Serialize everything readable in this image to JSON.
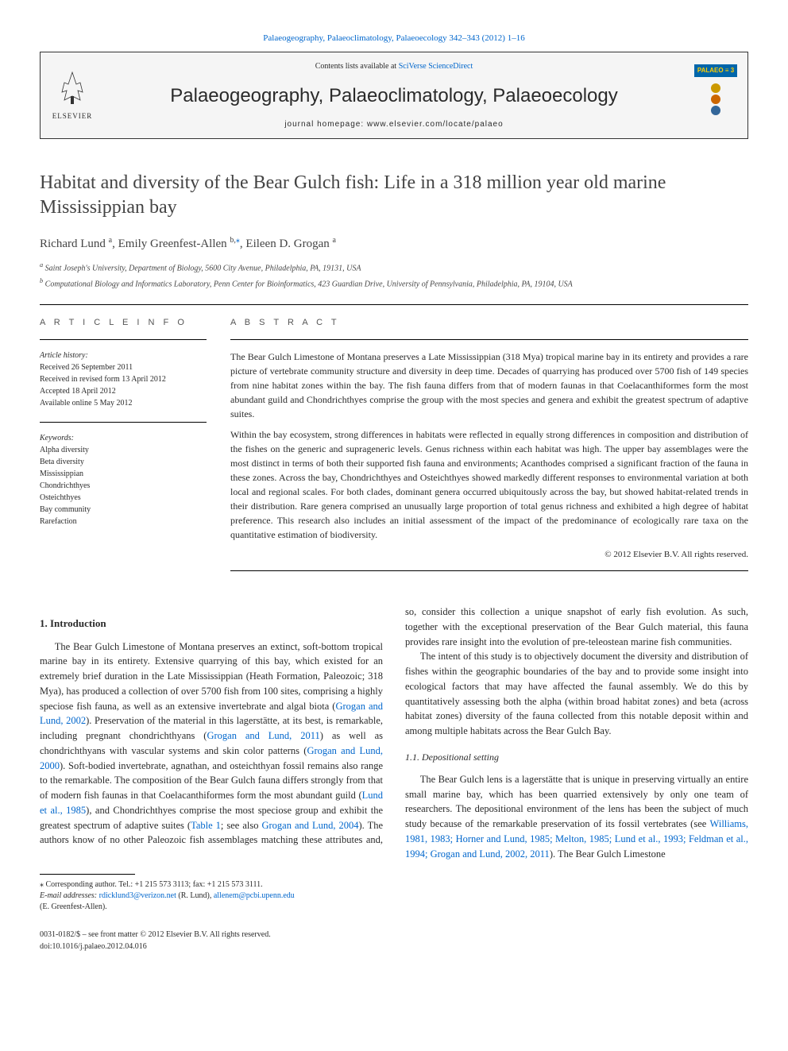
{
  "top_link": {
    "text_before": "",
    "journal_ref": "Palaeogeography, Palaeoclimatology, Palaeoecology 342–343 (2012) 1–16"
  },
  "header": {
    "contents_prefix": "Contents lists available at ",
    "contents_link": "SciVerse ScienceDirect",
    "journal_title": "Palaeogeography, Palaeoclimatology, Palaeoecology",
    "homepage": "journal homepage: www.elsevier.com/locate/palaeo",
    "elsevier_label": "ELSEVIER",
    "palaeo_badge": "PALAEO ≡ 3",
    "circle_colors": [
      "#cc9900",
      "#cc6600",
      "#336699"
    ]
  },
  "article": {
    "title": "Habitat and diversity of the Bear Gulch fish: Life in a 318 million year old marine Mississippian bay",
    "authors_html": "Richard Lund <sup>a</sup>, Emily Greenfest-Allen <sup>b,</sup><sup class=\"corresp\">⁎</sup>, Eileen D. Grogan <sup>a</sup>",
    "affiliations": [
      "Saint Joseph's University, Department of Biology, 5600 City Avenue, Philadelphia, PA, 19131, USA",
      "Computational Biology and Informatics Laboratory, Penn Center for Bioinformatics, 423 Guardian Drive, University of Pennsylvania, Philadelphia, PA, 19104, USA"
    ]
  },
  "info": {
    "heading": "A R T I C L E   I N F O",
    "history_label": "Article history:",
    "history": [
      "Received 26 September 2011",
      "Received in revised form 13 April 2012",
      "Accepted 18 April 2012",
      "Available online 5 May 2012"
    ],
    "keywords_label": "Keywords:",
    "keywords": [
      "Alpha diversity",
      "Beta diversity",
      "Mississippian",
      "Chondrichthyes",
      "Osteichthyes",
      "Bay community",
      "Rarefaction"
    ]
  },
  "abstract": {
    "heading": "A B S T R A C T",
    "paragraphs": [
      "The Bear Gulch Limestone of Montana preserves a Late Mississippian (318 Mya) tropical marine bay in its entirety and provides a rare picture of vertebrate community structure and diversity in deep time. Decades of quarrying has produced over 5700 fish of 149 species from nine habitat zones within the bay. The fish fauna differs from that of modern faunas in that Coelacanthiformes form the most abundant guild and Chondrichthyes comprise the group with the most species and genera and exhibit the greatest spectrum of adaptive suites.",
      "Within the bay ecosystem, strong differences in habitats were reflected in equally strong differences in composition and distribution of the fishes on the generic and suprageneric levels. Genus richness within each habitat was high. The upper bay assemblages were the most distinct in terms of both their supported fish fauna and environments; Acanthodes comprised a significant fraction of the fauna in these zones. Across the bay, Chondrichthyes and Osteichthyes showed markedly different responses to environmental variation at both local and regional scales. For both clades, dominant genera occurred ubiquitously across the bay, but showed habitat-related trends in their distribution. Rare genera comprised an unusually large proportion of total genus richness and exhibited a high degree of habitat preference. This research also includes an initial assessment of the impact of the predominance of ecologically rare taxa on the quantitative estimation of biodiversity."
    ],
    "copyright": "© 2012 Elsevier B.V. All rights reserved."
  },
  "body": {
    "section1_heading": "1. Introduction",
    "section1_p1": "The Bear Gulch Limestone of Montana preserves an extinct, soft-bottom tropical marine bay in its entirety. Extensive quarrying of this bay, which existed for an extremely brief duration in the Late Mississippian (Heath Formation, Paleozoic; 318 Mya), has produced a collection of over 5700 fish from 100 sites, comprising a highly speciose fish fauna, as well as an extensive invertebrate and algal biota (",
    "ref1": "Grogan and Lund, 2002",
    "section1_p1b": "). Preservation of the material in this lagerstätte, at its best, is remarkable, including pregnant chondrichthyans (",
    "ref2": "Grogan and Lund, 2011",
    "section1_p1c": ") as well as chondrichthyans with vascular systems and skin color patterns (",
    "ref3": "Grogan and Lund, 2000",
    "section1_p1d": "). Soft-bodied invertebrate, agnathan, and osteichthyan fossil remains also range to the remarkable. The composition of the Bear Gulch fauna differs strongly from that of modern fish faunas in that Coelacanthiformes form the most abundant guild (",
    "ref4": "Lund et al., 1985",
    "section1_p1e": "), and Chondrichthyes comprise the most speciose group and exhibit the greatest spectrum of adaptive suites (",
    "ref5": "Table 1",
    "section1_p1f": "; see also ",
    "ref6": "Grogan and Lund, 2004",
    "section1_p1g": "). The authors know of no other Paleozoic fish assemblages matching these attributes and, so, consider this collection a unique snapshot of early fish evolution. As such, together with the exceptional preservation of the Bear Gulch material, this fauna provides rare insight into the evolution of pre-teleostean marine fish communities.",
    "section1_p2": "The intent of this study is to objectively document the diversity and distribution of fishes within the geographic boundaries of the bay and to provide some insight into ecological factors that may have affected the faunal assembly. We do this by quantitatively assessing both the alpha (within broad habitat zones) and beta (across habitat zones) diversity of the fauna collected from this notable deposit within and among multiple habitats across the Bear Gulch Bay.",
    "section11_heading": "1.1. Depositional setting",
    "section11_p1": "The Bear Gulch lens is a lagerstätte that is unique in preserving virtually an entire small marine bay, which has been quarried extensively by only one team of researchers. The depositional environment of the lens has been the subject of much study because of the remarkable preservation of its fossil vertebrates (see ",
    "ref7": "Williams, 1981, 1983; Horner and Lund, 1985; Melton, 1985; Lund et al., 1993; Feldman et al., 1994; Grogan and Lund, 2002, 2011",
    "section11_p1b": "). The Bear Gulch Limestone"
  },
  "footnotes": {
    "corresp": "⁎ Corresponding author. Tel.: +1 215 573 3113; fax: +1 215 573 3111.",
    "email_label": "E-mail addresses: ",
    "email1": "rdicklund3@verizon.net",
    "email1_name": " (R. Lund), ",
    "email2": "allenem@pcbi.upenn.edu",
    "email2_name": "(E. Greenfest-Allen)."
  },
  "bottom": {
    "left1": "0031-0182/$ – see front matter © 2012 Elsevier B.V. All rights reserved.",
    "left2": "doi:10.1016/j.palaeo.2012.04.016"
  },
  "colors": {
    "link": "#0066cc",
    "text": "#2a2a2a",
    "header_bg": "#f5f5f5"
  }
}
